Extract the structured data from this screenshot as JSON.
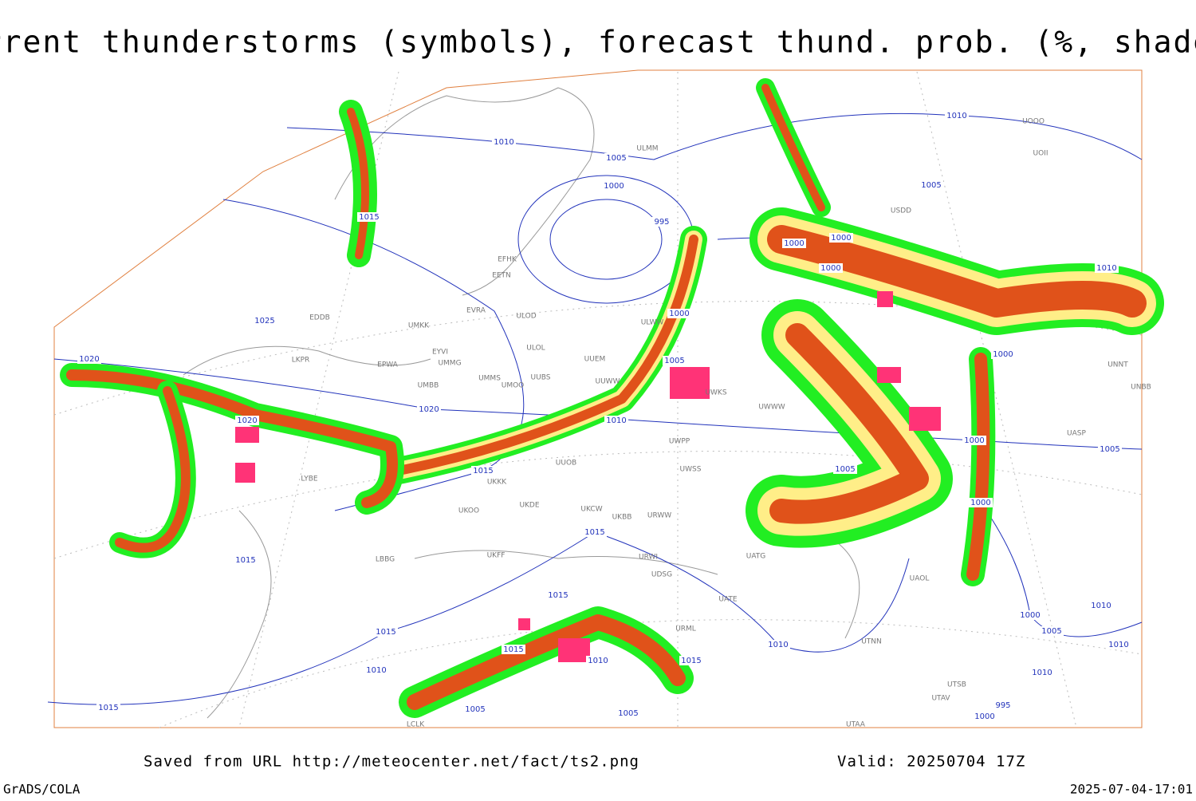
{
  "title": "Current thunderstorms (symbols), forecast thund. prob. (%, shaded)",
  "footer": {
    "saved_from": "Saved from URL http://meteocenter.net/fact/ts2.png",
    "valid": "Valid: 20250704 17Z",
    "software": "GrADS/COLA",
    "timestamp": "2025-07-04-17:01"
  },
  "isobar_labels": [
    "1010",
    "1010",
    "1005",
    "1000",
    "995",
    "1015",
    "1005",
    "1000",
    "1000",
    "1000",
    "1010",
    "1025",
    "1000",
    "1020",
    "1005",
    "1000",
    "1020",
    "1020",
    "1010",
    "1000",
    "1005",
    "1015",
    "1005",
    "1000",
    "1015",
    "1015",
    "1015",
    "1010",
    "1000",
    "1015",
    "1005",
    "1010",
    "1010",
    "1015",
    "1010",
    "1015",
    "1010",
    "1010",
    "1015",
    "1005",
    "1005",
    "995",
    "1000"
  ],
  "stations": [
    "ULWW",
    "UUEM",
    "UUWW",
    "ULOL",
    "ULOD",
    "UMMS",
    "UUBS",
    "UMOO",
    "UMBB",
    "EPWA",
    "EYVI",
    "UMMG",
    "EVRA",
    "EETN",
    "EFHK",
    "ULMM",
    "UKKK",
    "UKDE",
    "UKOO",
    "UKCW",
    "UUOB",
    "UWPP",
    "UWSS",
    "URWW",
    "URWI",
    "UATG",
    "URML",
    "UATE",
    "LBBG",
    "LYBE",
    "LKPR",
    "EDDB",
    "UKFF",
    "LCLK",
    "UTNN",
    "UAOL",
    "UOOO",
    "UOII",
    "USDD",
    "UNBB",
    "UNNT",
    "UASP",
    "UTAA",
    "UTSB",
    "UTAV",
    "UMKK",
    "UWKS",
    "UWWW",
    "UKBB",
    "UDSG"
  ]
}
